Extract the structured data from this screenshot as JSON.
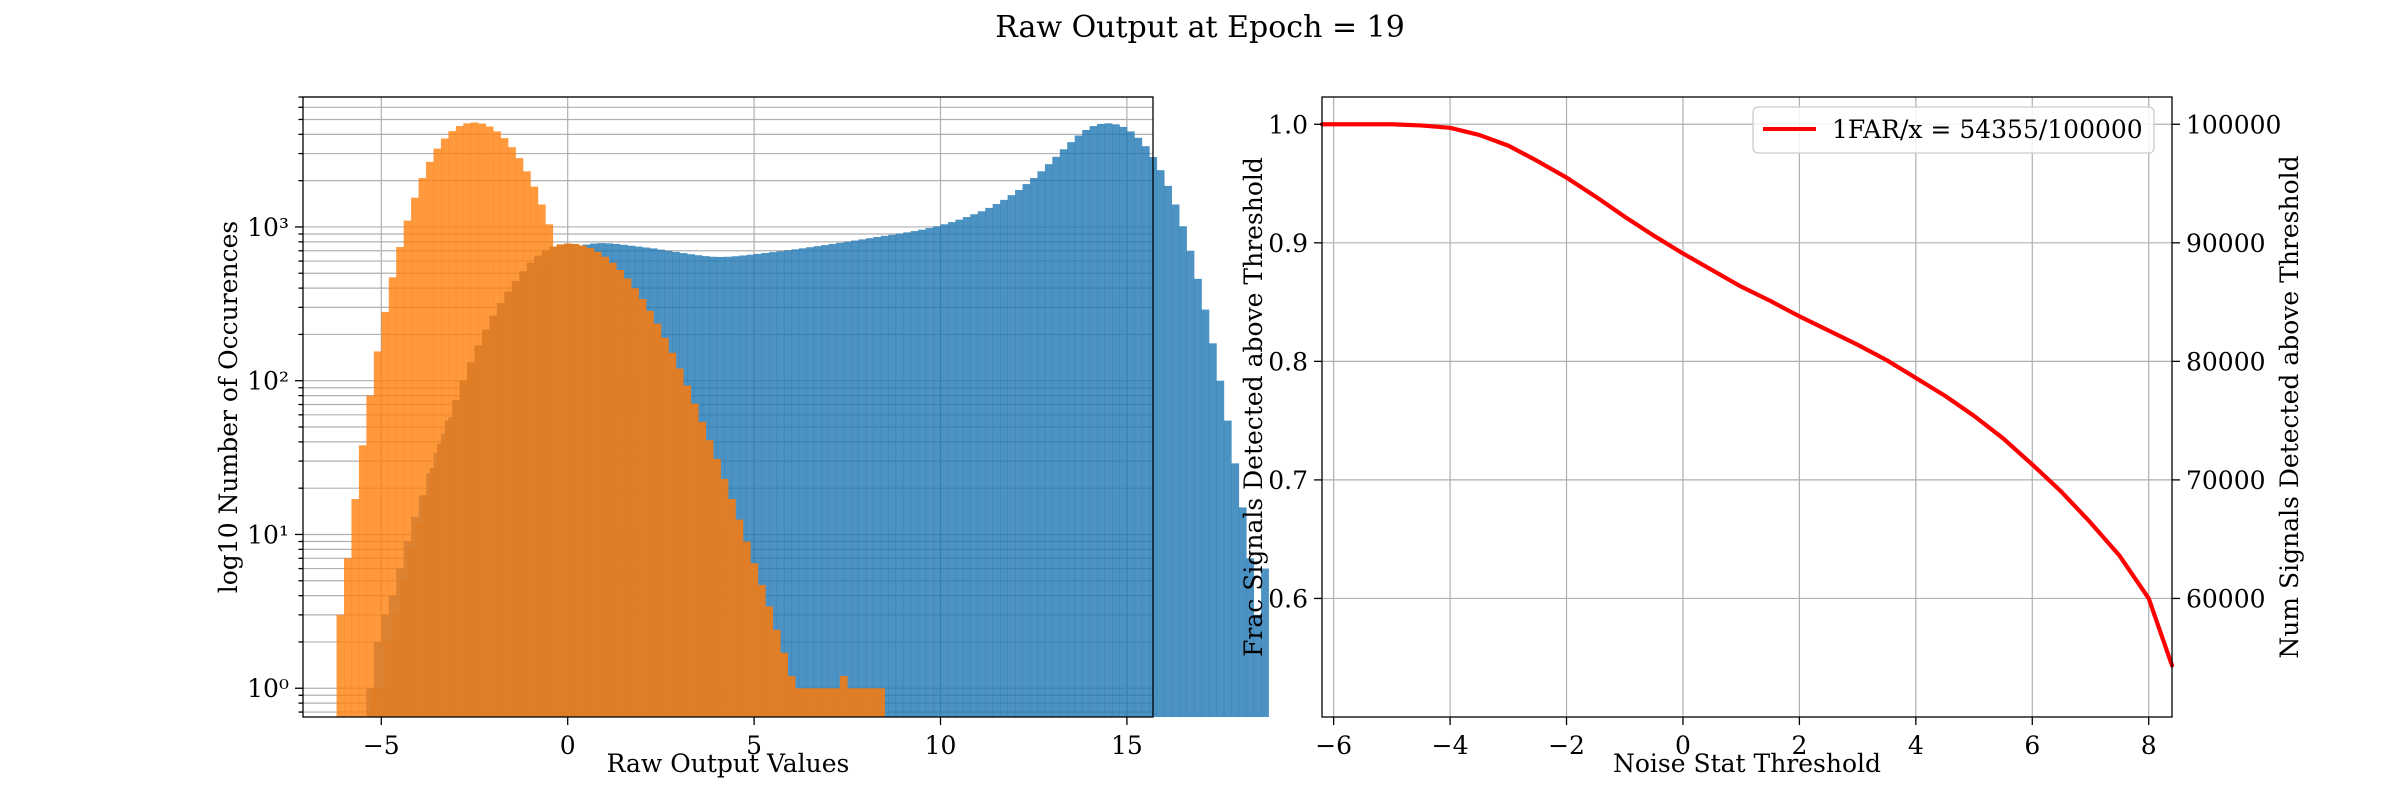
{
  "figure": {
    "title": "Raw Output at Epoch = 19"
  },
  "chart_data": [
    {
      "type": "histogram",
      "xlabel": "Raw Output Values",
      "ylabel": "log10 Number of Occurences",
      "yscale": "log",
      "xlim": [
        -7.1,
        15.7
      ],
      "ylim": [
        0.65,
        7000
      ],
      "xticks": [
        -5,
        0,
        5,
        10,
        15
      ],
      "xtick_labels": [
        "−5",
        "0",
        "5",
        "10",
        "15"
      ],
      "yticks": [
        1,
        10,
        100,
        1000
      ],
      "ytick_labels": [
        "10⁰",
        "10¹",
        "10²",
        "10³"
      ],
      "grid": true,
      "bin_width": 0.2,
      "series": [
        {
          "color": "#1f77b4",
          "bin_start": -5.4,
          "counts": [
            1,
            2,
            3,
            4,
            6,
            9,
            13,
            18,
            25,
            34,
            45,
            58,
            75,
            95,
            118,
            145,
            175,
            210,
            250,
            295,
            345,
            400,
            455,
            510,
            565,
            620,
            668,
            710,
            745,
            768,
            780,
            785,
            782,
            775,
            765,
            755,
            745,
            735,
            725,
            712,
            700,
            688,
            676,
            665,
            655,
            646,
            640,
            638,
            640,
            645,
            652,
            660,
            668,
            677,
            686,
            695,
            705,
            715,
            726,
            738,
            750,
            762,
            775,
            788,
            802,
            816,
            830,
            845,
            860,
            875,
            890,
            905,
            922,
            940,
            960,
            985,
            1010,
            1040,
            1075,
            1115,
            1160,
            1210,
            1265,
            1330,
            1410,
            1500,
            1610,
            1740,
            1900,
            2080,
            2300,
            2560,
            2860,
            3200,
            3560,
            3930,
            4270,
            4530,
            4680,
            4720,
            4650,
            4470,
            4180,
            3800,
            3350,
            2850,
            2340,
            1850,
            1400,
            1010,
            700,
            460,
            290,
            175,
            100,
            55,
            29,
            15,
            7,
            3,
            6
          ]
        },
        {
          "color": "#ff7f0e",
          "bin_start": -6.2,
          "counts": [
            3,
            7,
            17,
            38,
            80,
            155,
            280,
            470,
            740,
            1100,
            1550,
            2080,
            2650,
            3230,
            3760,
            4200,
            4530,
            4720,
            4780,
            4700,
            4500,
            4180,
            3780,
            3300,
            2800,
            2300,
            1830,
            1400,
            1040,
            740,
            505,
            330,
            205,
            122,
            70,
            38,
            20,
            10,
            5,
            2.5,
            1.2,
            0.7
          ]
        },
        {
          "color": "#e07d27",
          "bin_start": -5.3,
          "counts": [
            1,
            1,
            2,
            3,
            5,
            8,
            12,
            18,
            27,
            39,
            55,
            75,
            100,
            132,
            170,
            215,
            265,
            320,
            380,
            445,
            515,
            585,
            650,
            705,
            745,
            770,
            780,
            775,
            758,
            730,
            690,
            640,
            585,
            525,
            462,
            400,
            340,
            285,
            235,
            190,
            152,
            120,
            93,
            71,
            54,
            41,
            31,
            23,
            17,
            12.5,
            9,
            6.5,
            4.7,
            3.4,
            2.4,
            1.7,
            1.2,
            1,
            1,
            1,
            1,
            1,
            1,
            1.2,
            1,
            1,
            1,
            1,
            1
          ]
        }
      ]
    },
    {
      "type": "line",
      "xlabel": "Noise Stat Threshold",
      "ylabel": "Frac Signals Detected above Threshold",
      "ylabel_right": "Num Signals Detected above Threshold",
      "xlim": [
        -6.2,
        8.4
      ],
      "ylim": [
        0.5,
        1.023
      ],
      "ylim_right": [
        50000,
        102300
      ],
      "xticks": [
        -6,
        -4,
        -2,
        0,
        2,
        4,
        6,
        8
      ],
      "xtick_labels": [
        "−6",
        "−4",
        "−2",
        "0",
        "2",
        "4",
        "6",
        "8"
      ],
      "yticks": [
        0.6,
        0.7,
        0.8,
        0.9,
        1.0
      ],
      "ytick_labels": [
        "0.6",
        "0.7",
        "0.8",
        "0.9",
        "1.0"
      ],
      "yticks_right": [
        60000,
        70000,
        80000,
        90000,
        100000
      ],
      "ytick_labels_right": [
        "60000",
        "70000",
        "80000",
        "90000",
        "100000"
      ],
      "grid": true,
      "legend_location": "top-right",
      "series": [
        {
          "name": "1FAR/x = 54355/100000",
          "color": "#ff0000",
          "x": [
            -6.2,
            -6,
            -5.5,
            -5,
            -4.5,
            -4,
            -3.5,
            -3,
            -2.5,
            -2,
            -1.5,
            -1,
            -0.5,
            0,
            0.5,
            1,
            1.5,
            2,
            2.5,
            3,
            3.5,
            4,
            4.5,
            5,
            5.5,
            6,
            6.5,
            7,
            7.5,
            8,
            8.4
          ],
          "y": [
            1.0,
            1.0,
            1.0,
            1.0,
            0.999,
            0.997,
            0.991,
            0.982,
            0.969,
            0.955,
            0.939,
            0.922,
            0.906,
            0.891,
            0.877,
            0.863,
            0.851,
            0.838,
            0.826,
            0.814,
            0.801,
            0.786,
            0.771,
            0.754,
            0.735,
            0.713,
            0.69,
            0.664,
            0.636,
            0.6,
            0.5435
          ]
        }
      ]
    }
  ]
}
